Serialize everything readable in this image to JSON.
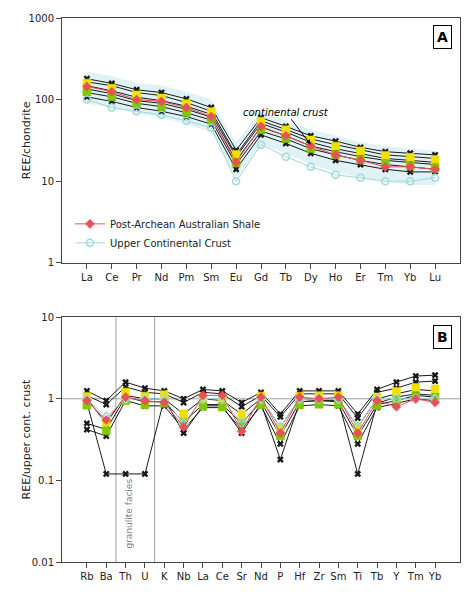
{
  "chart_data": [
    {
      "type": "line",
      "title": "A",
      "categories": [
        "La",
        "Ce",
        "Pr",
        "Nd",
        "Pm",
        "Sm",
        "Eu",
        "Gd",
        "Tb",
        "Dy",
        "Ho",
        "Er",
        "Tm",
        "Yb",
        "Lu"
      ],
      "ylabel": "REE/chondrite",
      "log": "y",
      "ylim": [
        1,
        1000
      ],
      "yticks": [
        1,
        10,
        100,
        1000
      ],
      "grid": false,
      "legend": "lower left",
      "series": [
        {
          "type": "band",
          "color": "#c8e8f0",
          "lower": [
            90,
            78,
            68,
            60,
            50,
            40,
            11,
            28,
            22,
            16,
            13,
            11,
            10,
            9,
            9
          ],
          "upper": [
            220,
            195,
            160,
            150,
            125,
            100,
            30,
            72,
            56,
            43,
            36,
            30,
            27,
            25,
            24
          ]
        },
        {
          "type": "line",
          "marker": "x",
          "color": "#1a1a1a",
          "values": [
            165,
            148,
            122,
            112,
            92,
            72,
            21,
            55,
            43,
            33,
            28,
            24,
            21,
            20,
            19
          ]
        },
        {
          "type": "line",
          "marker": "x",
          "color": "#1a1a1a",
          "values": [
            180,
            158,
            132,
            122,
            102,
            80,
            24,
            60,
            47,
            36,
            31,
            26,
            23,
            22,
            21
          ]
        },
        {
          "type": "line",
          "marker": "x",
          "color": "#1a1a1a",
          "values": [
            135,
            118,
            97,
            90,
            76,
            61,
            18,
            46,
            36,
            27,
            23,
            20,
            18,
            17,
            16
          ]
        },
        {
          "type": "line",
          "marker": "x",
          "color": "#1a1a1a",
          "values": [
            148,
            128,
            107,
            97,
            83,
            66,
            20,
            51,
            40,
            30,
            25,
            22,
            19,
            18,
            17
          ]
        },
        {
          "type": "line",
          "marker": "x",
          "color": "#1a1a1a",
          "values": [
            122,
            108,
            90,
            82,
            69,
            56,
            16,
            41,
            33,
            25,
            21,
            18,
            16,
            15,
            14
          ]
        },
        {
          "type": "line",
          "marker": "x",
          "color": "#1a1a1a",
          "values": [
            108,
            95,
            80,
            72,
            62,
            50,
            14,
            37,
            29,
            22,
            18,
            16,
            14,
            13,
            13
          ]
        },
        {
          "type": "scatter",
          "marker": "square",
          "color": "#f0e000",
          "values": [
            158.48,
            137.76,
            114.24,
            104.72,
            89.04,
            71.12,
            21.28,
            54.32,
            42.56,
            31.92,
            26.88,
            23.52,
            20.72,
            19.6,
            18.48
          ]
        },
        {
          "type": "scatter",
          "marker": "square",
          "color": "#80c800",
          "values": [
            124.52,
            108.24,
            89.76,
            82.28,
            69.96,
            55.88,
            16.72,
            42.68,
            33.44,
            25.08,
            21.12,
            18.48,
            16.28,
            15.4,
            14.52
          ]
        },
        {
          "name": "Upper Continental Crust",
          "type": "line",
          "marker": "circle-open",
          "color": "#a0d8d8",
          "values": [
            100,
            80,
            72,
            65,
            55,
            45,
            10,
            28,
            20,
            15,
            12,
            11,
            10,
            10,
            11
          ]
        },
        {
          "name": "Post-Archean Australian Shale",
          "type": "line",
          "marker": "diamond",
          "color": "#e8505a",
          "values": [
            145,
            125,
            100,
            95,
            80,
            62,
            17,
            47,
            36,
            27,
            21,
            18,
            15,
            15,
            14
          ]
        }
      ],
      "annotations": [
        {
          "text": "continental crust",
          "x": 8,
          "y": 70,
          "arrow_x": 9,
          "arrow_y": 28
        }
      ]
    },
    {
      "type": "line",
      "title": "B",
      "categories": [
        "Rb",
        "Ba",
        "Th",
        "U",
        "K",
        "Nb",
        "La",
        "Ce",
        "Sr",
        "Nd",
        "P",
        "Hf",
        "Zr",
        "Sm",
        "Ti",
        "Tb",
        "Y",
        "Tm",
        "Yb"
      ],
      "ylabel": "REE/upper cont. crust",
      "log": "y",
      "ylim": [
        0.01,
        10
      ],
      "yticks": [
        0.01,
        0.1,
        1,
        10
      ],
      "grid": false,
      "hlines": [
        {
          "y": 1.0,
          "color": "#a0a0a0"
        }
      ],
      "vlines": [
        {
          "x": 1.5,
          "color": "#a0a0a0"
        },
        {
          "x": 3.5,
          "color": "#a0a0a0"
        }
      ],
      "series": [
        {
          "type": "line",
          "marker": "x",
          "color": "#1a1a1a",
          "values": [
            1.1,
            0.85,
            1.4,
            1.2,
            1.15,
            0.9,
            1.2,
            1.15,
            0.8,
            1.1,
            0.6,
            1.15,
            1.15,
            1.15,
            0.58,
            1.2,
            1.35,
            1.6,
            1.65
          ]
        },
        {
          "type": "line",
          "marker": "x",
          "color": "#1a1a1a",
          "values": [
            1.25,
            0.95,
            1.6,
            1.35,
            1.25,
            1.0,
            1.3,
            1.25,
            0.9,
            1.2,
            0.65,
            1.25,
            1.25,
            1.25,
            0.65,
            1.3,
            1.6,
            1.9,
            1.95
          ]
        },
        {
          "type": "line",
          "marker": "x",
          "color": "#1a1a1a",
          "values": [
            0.9,
            0.12,
            0.12,
            0.12,
            1.0,
            0.38,
            0.82,
            0.82,
            0.38,
            0.88,
            0.18,
            0.92,
            0.95,
            0.95,
            0.12,
            0.88,
            1.05,
            1.15,
            1.1
          ]
        },
        {
          "type": "line",
          "marker": "x",
          "color": "#1a1a1a",
          "values": [
            1.0,
            0.5,
            1.1,
            1.0,
            1.0,
            0.65,
            1.0,
            0.95,
            0.65,
            1.0,
            0.45,
            1.0,
            1.0,
            1.0,
            0.45,
            1.0,
            1.15,
            1.3,
            1.25
          ]
        },
        {
          "type": "line",
          "marker": "x",
          "color": "#1a1a1a",
          "values": [
            0.5,
            0.42,
            1.05,
            0.92,
            0.92,
            0.52,
            0.85,
            0.85,
            0.5,
            0.92,
            0.35,
            0.92,
            0.95,
            0.92,
            0.35,
            0.85,
            0.95,
            1.1,
            1.05
          ]
        },
        {
          "type": "line",
          "marker": "x",
          "color": "#1a1a1a",
          "values": [
            0.42,
            0.35,
            0.95,
            0.82,
            0.82,
            0.42,
            0.78,
            0.78,
            0.42,
            0.82,
            0.28,
            0.82,
            0.85,
            0.82,
            0.28,
            0.78,
            0.88,
            1.0,
            0.95
          ]
        },
        {
          "type": "scatter",
          "marker": "square",
          "color": "#f0e000",
          "values": [
            1.064,
            0.5152,
            1.204,
            1.0752,
            1.12,
            0.6552,
            1.036,
            1.008,
            0.644,
            1.0752,
            0.448,
            1.0752,
            1.092,
            1.092,
            0.448,
            1.0528,
            1.232,
            1.372,
            1.316
          ]
        },
        {
          "type": "scatter",
          "marker": "square",
          "color": "#80c800",
          "values": [
            0.836,
            0.4048,
            0.946,
            0.8448,
            0.88,
            0.5148,
            0.814,
            0.792,
            0.506,
            0.8448,
            0.352,
            0.8448,
            0.858,
            0.858,
            0.352,
            0.8272,
            0.968,
            1.078,
            1.034
          ]
        },
        {
          "type": "line",
          "marker": "diamond-open",
          "color": "#a0d8d8",
          "values": [
            1.0,
            0.6,
            1.0,
            1.0,
            1.0,
            0.5,
            1.0,
            1.0,
            0.5,
            1.0,
            0.45,
            1.0,
            1.0,
            1.0,
            0.45,
            1.0,
            1.0,
            1.0,
            1.0
          ]
        },
        {
          "type": "line",
          "marker": "diamond",
          "color": "#e8505a",
          "values": [
            0.95,
            0.55,
            1.05,
            0.95,
            0.9,
            0.45,
            1.1,
            1.1,
            0.4,
            1.05,
            0.38,
            1.05,
            1.0,
            1.05,
            0.38,
            0.95,
            0.8,
            1.0,
            0.9
          ]
        }
      ],
      "annotations": [
        {
          "text": "granulite facies",
          "x": 2.2,
          "y": 0.014,
          "color": "#808080"
        }
      ]
    }
  ]
}
